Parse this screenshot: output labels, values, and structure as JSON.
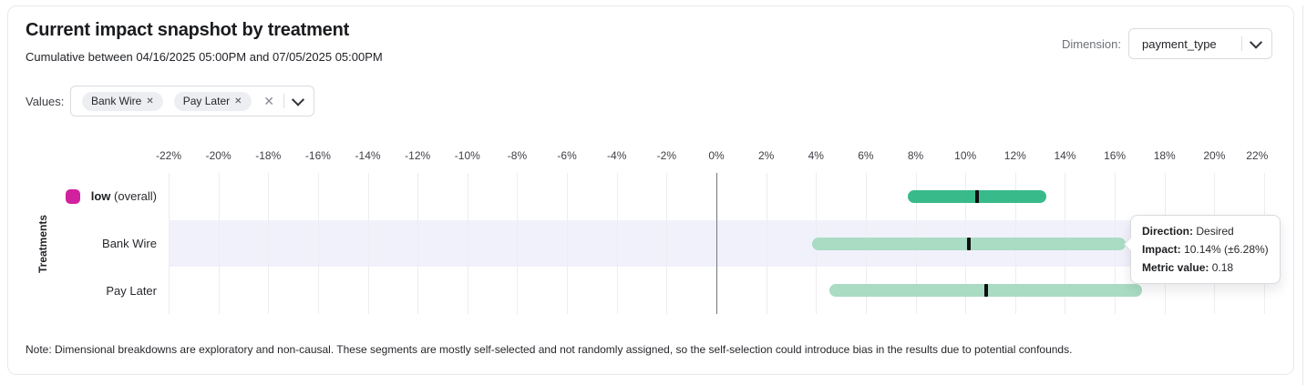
{
  "header": {
    "title": "Current impact snapshot by treatment",
    "subtitle": "Cumulative between 04/16/2025 05:00PM and 07/05/2025 05:00PM",
    "dimension_label": "Dimension:",
    "dimension_value": "payment_type"
  },
  "values_filter": {
    "label": "Values:",
    "chips": [
      "Bank Wire",
      "Pay Later"
    ],
    "clear_icon": "clear-all-x",
    "dropdown_icon": "chevron-down"
  },
  "chart_data": {
    "type": "bar",
    "variant": "horizontal-confidence-interval",
    "ylabel": "Treatments",
    "xlim": [
      -22,
      22
    ],
    "grid": true,
    "highlight_band_color": "#f1f1fc",
    "tick_values": [
      -22,
      -20,
      -18,
      -16,
      -14,
      -12,
      -10,
      -8,
      -6,
      -4,
      -2,
      0,
      2,
      4,
      6,
      8,
      10,
      12,
      14,
      16,
      18,
      20,
      22
    ],
    "tick_labels": [
      "-22%",
      "-20%",
      "-18%",
      "-16%",
      "-14%",
      "-12%",
      "-10%",
      "-8%",
      "-6%",
      "-4%",
      "-2%",
      "0%",
      "2%",
      "4%",
      "6%",
      "8%",
      "10%",
      "12%",
      "14%",
      "16%",
      "18%",
      "20%",
      "22%"
    ],
    "series": [
      {
        "label": "low",
        "label_suffix": "(overall)",
        "legend_color": "#d2219e",
        "bar_color": "#39ba8b",
        "impact": 10.46,
        "ci_low": 7.67,
        "ci_high": 13.24,
        "row_highlight": false
      },
      {
        "label": "Bank Wire",
        "bar_color": "#a9dcc3",
        "impact": 10.14,
        "ci_low": 3.86,
        "ci_high": 16.42,
        "row_highlight": true
      },
      {
        "label": "Pay Later",
        "bar_color": "#a9dcc3",
        "impact": 10.82,
        "ci_low": 4.55,
        "ci_high": 17.09,
        "row_highlight": false
      }
    ]
  },
  "tooltip": {
    "rows": [
      {
        "label": "Direction:",
        "value": "Desired"
      },
      {
        "label": "Impact:",
        "value": "10.14% (±6.28%)"
      },
      {
        "label": "Metric value:",
        "value": "0.18"
      }
    ]
  },
  "note": "Note: Dimensional breakdowns are exploratory and non-causal. These segments are mostly self-selected and not randomly assigned, so the self-selection could introduce bias in the results due to potential confounds."
}
